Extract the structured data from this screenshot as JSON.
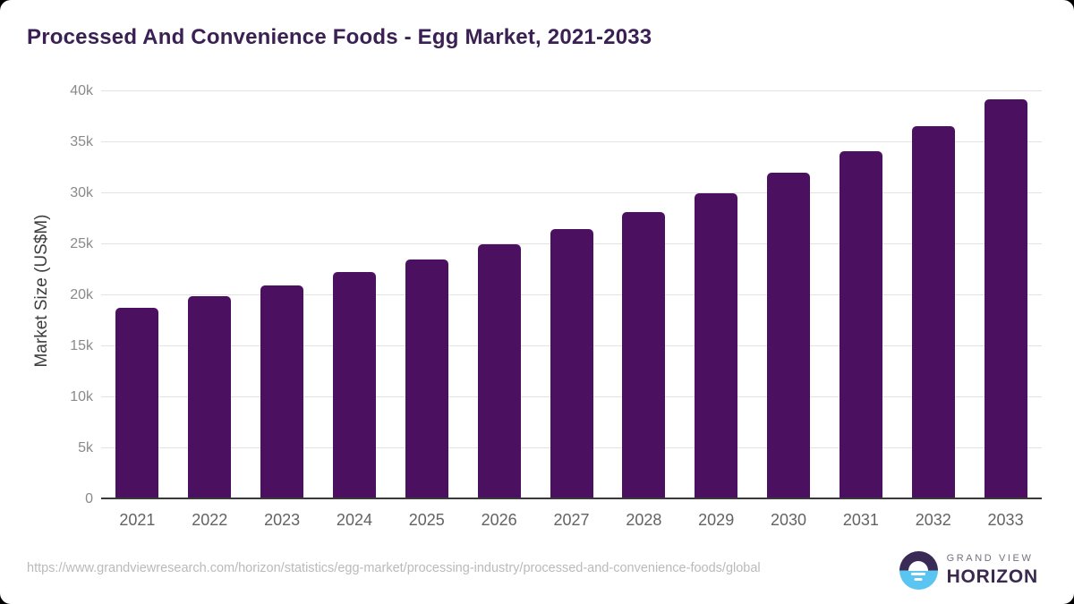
{
  "chart_data": {
    "type": "bar",
    "title": "Processed And Convenience Foods - Egg Market, 2021-2033",
    "categories": [
      "2021",
      "2022",
      "2023",
      "2024",
      "2025",
      "2026",
      "2027",
      "2028",
      "2029",
      "2030",
      "2031",
      "2032",
      "2033"
    ],
    "values": [
      18800,
      19900,
      21000,
      22250,
      23550,
      25000,
      26450,
      28200,
      30000,
      32000,
      34150,
      36600,
      39250
    ],
    "xlabel": "",
    "ylabel": "Market Size (US$M)",
    "ylim": [
      0,
      40000
    ],
    "ytick_values": [
      0,
      5000,
      10000,
      15000,
      20000,
      25000,
      30000,
      35000,
      40000
    ],
    "ytick_labels": [
      "0",
      "5k",
      "10k",
      "15k",
      "20k",
      "25k",
      "30k",
      "35k",
      "40k"
    ],
    "grid": true,
    "legend": false,
    "bar_color": "#4B1060"
  },
  "colors": {
    "title_text": "#3B2153",
    "bar_fill": "#4B1060",
    "gridline": "#E3E3E3",
    "axis_line": "#3A3A3A",
    "y_tick_text": "#8A8A8A",
    "x_tick_text": "#636363",
    "url_text": "#BABABA",
    "logo_purple": "#3A2B56",
    "logo_blue": "#59C5F0"
  },
  "footer": {
    "source_url": "https://www.grandviewresearch.com/horizon/statistics/egg-market/processing-industry/processed-and-convenience-foods/global",
    "logo": {
      "line1": "GRAND VIEW",
      "line2": "HORIZON"
    }
  }
}
